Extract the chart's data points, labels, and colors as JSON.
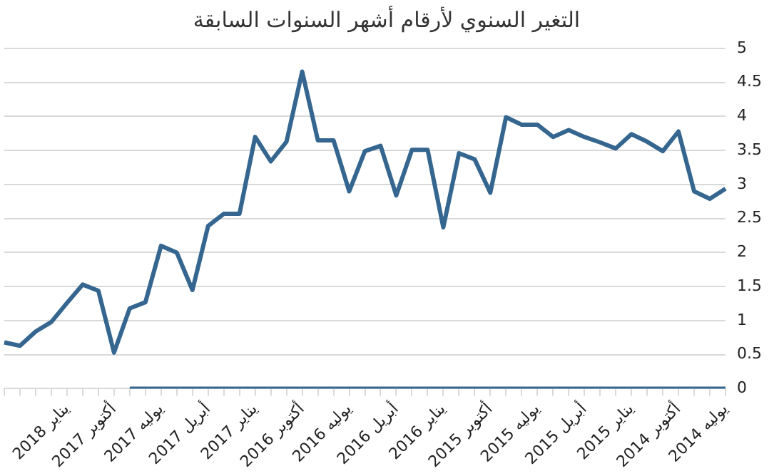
{
  "chart_data": {
    "type": "line",
    "title": "التغير السنوي لأرقام أشهر السنوات السابقة",
    "categories": [
      null,
      null,
      null,
      null,
      "يناير 2018",
      null,
      null,
      "أكتوبر 2017",
      null,
      null,
      "يوليه 2017",
      null,
      null,
      "أبريل 2017",
      null,
      null,
      "يناير 2017",
      null,
      null,
      "أكتوبر 2016",
      null,
      null,
      "يوليه 2016",
      null,
      null,
      "أبريل 2016",
      null,
      null,
      "يناير 2016",
      null,
      null,
      "أكتوبر 2015",
      null,
      null,
      "يوليه 2015",
      null,
      null,
      "أبريل 2015",
      null,
      null,
      "يناير 2015",
      null,
      null,
      "أكتوبر 2014",
      null,
      null,
      "يوليه 2014"
    ],
    "series": [
      {
        "color": "#35668f",
        "values": [
          0.68,
          0.63,
          0.84,
          0.98,
          1.26,
          1.53,
          1.44,
          0.53,
          1.18,
          1.27,
          2.1,
          2.0,
          1.45,
          2.39,
          2.57,
          2.57,
          3.7,
          3.34,
          3.63,
          4.66,
          3.65,
          3.65,
          2.9,
          3.49,
          3.57,
          2.84,
          3.51,
          3.51,
          2.37,
          3.46,
          3.37,
          2.88,
          3.99,
          3.88,
          3.88,
          3.7,
          3.8,
          3.7,
          3.62,
          3.53,
          3.74,
          3.63,
          3.49,
          3.78,
          2.9,
          2.79,
          2.94
        ]
      },
      {
        "color": "#35668f",
        "values": [
          null,
          null,
          null,
          null,
          null,
          null,
          null,
          null,
          0,
          0,
          0,
          0,
          0,
          0,
          0,
          0,
          0,
          0,
          0,
          0,
          0,
          0,
          0,
          0,
          0,
          0,
          0,
          0,
          0,
          0,
          0,
          0,
          0,
          0,
          0,
          0,
          0,
          0,
          0,
          0,
          0,
          0,
          0,
          0,
          0,
          0,
          0
        ]
      }
    ],
    "ylim": [
      0,
      5
    ],
    "yticks": [
      0,
      0.5,
      1,
      1.5,
      2,
      2.5,
      3,
      3.5,
      4,
      4.5,
      5
    ],
    "grid": "y",
    "marker": "none",
    "line_style": "solid",
    "legend": false
  }
}
